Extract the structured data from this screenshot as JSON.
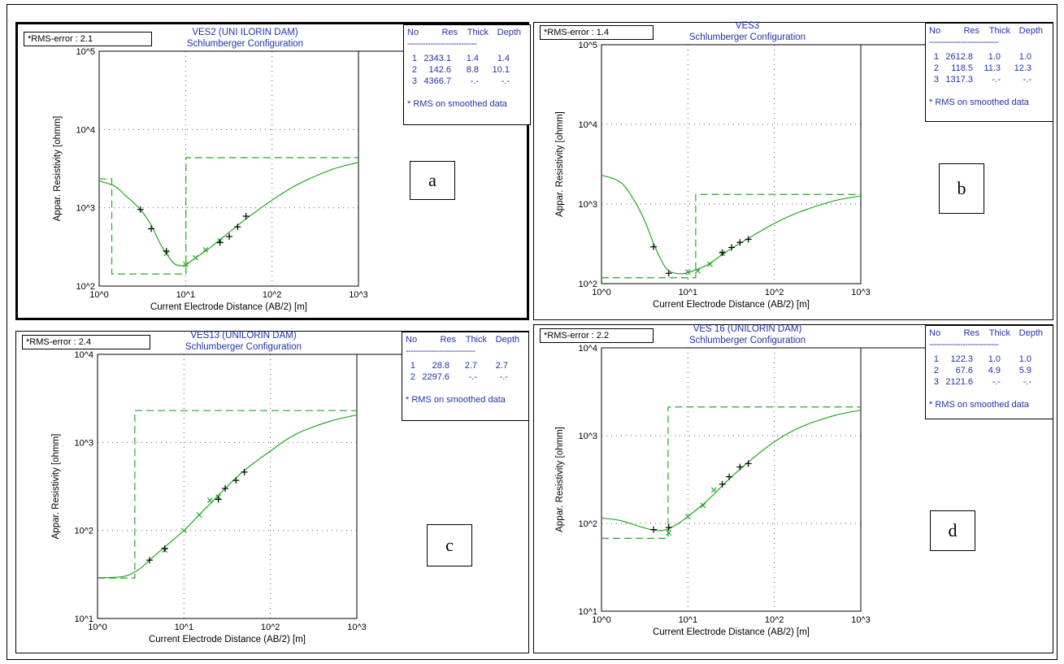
{
  "chart_data": [
    {
      "type": "line",
      "panel_letter": "a",
      "rms_label": "*RMS-error :",
      "rms_value": "2.1",
      "title": "VES2 (UNI ILORIN DAM)",
      "subtitle": "Schlumberger Configuration",
      "xlabel": "Current Electrode Distance (AB/2) [m]",
      "ylabel": "Appar. Resistivity [ohmm]",
      "x_scale": "log",
      "y_scale": "log",
      "xlim": [
        1,
        1000
      ],
      "ylim": [
        100,
        100000
      ],
      "x_ticks": [
        "10^0",
        "10^1",
        "10^2",
        "10^3"
      ],
      "y_ticks": [
        "10^2",
        "10^3",
        "10^4",
        "10^5"
      ],
      "grid": true,
      "table": {
        "headers": [
          "No",
          "Res",
          "Thick",
          "Depth"
        ],
        "separator": "---------------------------",
        "rows": [
          [
            "1",
            "2343.1",
            "1.4",
            "1.4"
          ],
          [
            "2",
            "142.6",
            "8.8",
            "10.1"
          ],
          [
            "3",
            "4366.7",
            "-.-",
            "-.-"
          ]
        ],
        "note": "* RMS on smoothed data"
      },
      "model": [
        [
          1,
          2343.1
        ],
        [
          1.4,
          2343.1
        ],
        [
          1.4,
          142.6
        ],
        [
          10.1,
          142.6
        ],
        [
          10.1,
          4366.7
        ],
        [
          1000,
          4366.7
        ]
      ],
      "curve": [
        [
          1,
          2200
        ],
        [
          1.5,
          1900
        ],
        [
          2,
          1450
        ],
        [
          3,
          950
        ],
        [
          4,
          600
        ],
        [
          5,
          360
        ],
        [
          6,
          260
        ],
        [
          7,
          205
        ],
        [
          8,
          185
        ],
        [
          10,
          185
        ],
        [
          12,
          215
        ],
        [
          15,
          255
        ],
        [
          20,
          320
        ],
        [
          30,
          460
        ],
        [
          50,
          720
        ],
        [
          100,
          1250
        ],
        [
          200,
          2000
        ],
        [
          500,
          3100
        ],
        [
          1000,
          3800
        ]
      ],
      "observed": [
        [
          3,
          950
        ],
        [
          4,
          540
        ],
        [
          6,
          280
        ],
        [
          25,
          360
        ],
        [
          32,
          430
        ],
        [
          40,
          570
        ],
        [
          50,
          780
        ]
      ],
      "smoothed": [
        [
          6,
          260
        ],
        [
          10,
          190
        ],
        [
          13,
          230
        ],
        [
          17,
          290
        ],
        [
          25,
          380
        ]
      ]
    },
    {
      "type": "line",
      "panel_letter": "b",
      "rms_label": "*RMS-error :",
      "rms_value": "1.4",
      "title": "VES3",
      "subtitle": "Schlumberger Configuration",
      "xlabel": "Current Electrode Distance (AB/2) [m]",
      "ylabel": "Appar. Resistivity [ohmm]",
      "x_scale": "log",
      "y_scale": "log",
      "xlim": [
        1,
        1000
      ],
      "ylim": [
        100,
        100000
      ],
      "x_ticks": [
        "10^0",
        "10^1",
        "10^2",
        "10^3"
      ],
      "y_ticks": [
        "10^2",
        "10^3",
        "10^4",
        "10^5"
      ],
      "grid": true,
      "table": {
        "headers": [
          "No",
          "Res",
          "Thick",
          "Depth"
        ],
        "separator": "---------------------------",
        "rows": [
          [
            "1",
            "2612.8",
            "1.0",
            "1.0"
          ],
          [
            "2",
            "118.5",
            "11.3",
            "12.3"
          ],
          [
            "3",
            "1317.3",
            "-.-",
            "-.-"
          ]
        ],
        "note": "* RMS on smoothed data"
      },
      "model": [
        [
          1,
          118.5
        ],
        [
          12.3,
          118.5
        ],
        [
          12.3,
          1317.3
        ],
        [
          1000,
          1317.3
        ]
      ],
      "curve": [
        [
          1,
          2300
        ],
        [
          1.5,
          2000
        ],
        [
          2,
          1500
        ],
        [
          3,
          700
        ],
        [
          4,
          320
        ],
        [
          5,
          190
        ],
        [
          6,
          145
        ],
        [
          8,
          133
        ],
        [
          10,
          138
        ],
        [
          15,
          162
        ],
        [
          20,
          195
        ],
        [
          30,
          265
        ],
        [
          50,
          370
        ],
        [
          100,
          570
        ],
        [
          200,
          800
        ],
        [
          500,
          1100
        ],
        [
          1000,
          1260
        ]
      ],
      "observed": [
        [
          4,
          290
        ],
        [
          6,
          135
        ],
        [
          25,
          245
        ],
        [
          32,
          285
        ],
        [
          40,
          330
        ],
        [
          50,
          360
        ]
      ],
      "smoothed": [
        [
          10,
          140
        ],
        [
          13,
          145
        ],
        [
          18,
          175
        ],
        [
          25,
          240
        ]
      ]
    },
    {
      "type": "line",
      "panel_letter": "c",
      "rms_label": "*RMS-error :",
      "rms_value": "2.4",
      "title": "VES13 (UNILORIN DAM)",
      "subtitle": "Schlumberger Configuration",
      "xlabel": "Current Electrode Distance (AB/2) [m]",
      "ylabel": "Appar. Resistivity [ohmm]",
      "x_scale": "log",
      "y_scale": "log",
      "xlim": [
        1,
        1000
      ],
      "ylim": [
        10,
        10000
      ],
      "x_ticks": [
        "10^0",
        "10^1",
        "10^2",
        "10^3"
      ],
      "y_ticks": [
        "10^1",
        "10^2",
        "10^3",
        "10^4"
      ],
      "grid": true,
      "table": {
        "headers": [
          "No",
          "Res",
          "Thick",
          "Depth"
        ],
        "separator": "---------------------------",
        "rows": [
          [
            "1",
            "28.8",
            "2.7",
            "2.7"
          ],
          [
            "2",
            "2297.6",
            "-.-",
            "-.-"
          ]
        ],
        "note": "* RMS on smoothed data"
      },
      "model": [
        [
          1,
          28.8
        ],
        [
          2.7,
          28.8
        ],
        [
          2.7,
          2297.6
        ],
        [
          1000,
          2297.6
        ]
      ],
      "curve": [
        [
          1,
          29
        ],
        [
          2,
          30
        ],
        [
          3,
          36
        ],
        [
          4,
          46
        ],
        [
          6,
          65
        ],
        [
          10,
          100
        ],
        [
          15,
          150
        ],
        [
          20,
          200
        ],
        [
          30,
          300
        ],
        [
          50,
          480
        ],
        [
          100,
          800
        ],
        [
          200,
          1250
        ],
        [
          500,
          1750
        ],
        [
          1000,
          2050
        ]
      ],
      "observed": [
        [
          4,
          46
        ],
        [
          6,
          62
        ],
        [
          25,
          225
        ],
        [
          30,
          300
        ],
        [
          40,
          370
        ],
        [
          50,
          460
        ]
      ],
      "smoothed": [
        [
          6,
          60
        ],
        [
          10,
          100
        ],
        [
          15,
          150
        ],
        [
          20,
          220
        ],
        [
          25,
          240
        ]
      ]
    },
    {
      "type": "line",
      "panel_letter": "d",
      "rms_label": "*RMS-error :",
      "rms_value": "2.2",
      "title": "VES 16 (UNILORIN DAM)",
      "subtitle": "Schlumberger Configuration",
      "xlabel": "Current Electrode Distance (AB/2) [m]",
      "ylabel": "Appar. Resistivity [ohmm]",
      "x_scale": "log",
      "y_scale": "log",
      "xlim": [
        1,
        1000
      ],
      "ylim": [
        10,
        10000
      ],
      "x_ticks": [
        "10^0",
        "10^1",
        "10^2",
        "10^3"
      ],
      "y_ticks": [
        "10^1",
        "10^2",
        "10^3",
        "10^4"
      ],
      "grid": true,
      "table": {
        "headers": [
          "No",
          "Res",
          "Thick",
          "Depth"
        ],
        "separator": "---------------------------",
        "rows": [
          [
            "1",
            "122.3",
            "1.0",
            "1.0"
          ],
          [
            "2",
            "67.6",
            "4.9",
            "5.9"
          ],
          [
            "3",
            "2121.6",
            "-.-",
            "-.-"
          ]
        ],
        "note": "* RMS on smoothed data"
      },
      "model": [
        [
          1,
          67.6
        ],
        [
          5.9,
          67.6
        ],
        [
          5.9,
          2121.6
        ],
        [
          1000,
          2121.6
        ]
      ],
      "curve": [
        [
          1,
          115
        ],
        [
          1.5,
          110
        ],
        [
          2,
          102
        ],
        [
          3,
          90
        ],
        [
          4,
          84
        ],
        [
          5,
          83
        ],
        [
          6,
          87
        ],
        [
          8,
          102
        ],
        [
          10,
          120
        ],
        [
          15,
          165
        ],
        [
          20,
          215
        ],
        [
          30,
          320
        ],
        [
          50,
          500
        ],
        [
          100,
          850
        ],
        [
          200,
          1250
        ],
        [
          500,
          1700
        ],
        [
          1000,
          1950
        ]
      ],
      "observed": [
        [
          4,
          85
        ],
        [
          6,
          90
        ],
        [
          25,
          280
        ],
        [
          30,
          340
        ],
        [
          40,
          440
        ],
        [
          50,
          480
        ]
      ],
      "smoothed": [
        [
          6,
          78
        ],
        [
          10,
          120
        ],
        [
          15,
          160
        ],
        [
          20,
          240
        ]
      ]
    }
  ]
}
